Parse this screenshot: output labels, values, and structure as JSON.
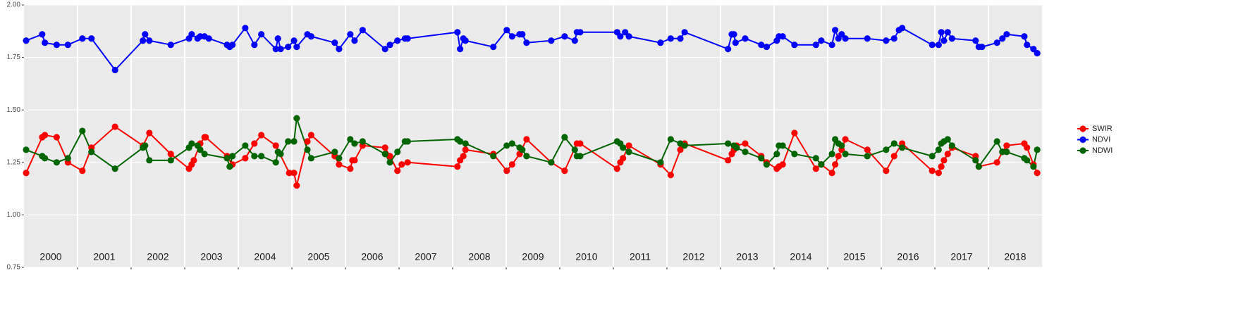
{
  "chart_data": {
    "type": "line",
    "xlim": [
      2000,
      2019
    ],
    "xticks": [
      2001,
      2002,
      2003,
      2004,
      2005,
      2006,
      2007,
      2008,
      2009,
      2010,
      2011,
      2012,
      2013,
      2014,
      2015,
      2016,
      2017,
      2018
    ],
    "panel_labels": [
      "2000",
      "2001",
      "2002",
      "2003",
      "2004",
      "2005",
      "2006",
      "2007",
      "2008",
      "2009",
      "2010",
      "2011",
      "2012",
      "2013",
      "2014",
      "2015",
      "2016",
      "2017",
      "2018"
    ],
    "ylim": [
      0.75,
      2.0
    ],
    "yticks": [
      0.75,
      {
        "value": 1.0,
        "label": "1.00"
      },
      1.25,
      {
        "value": 1.5,
        "label": "1.50"
      },
      1.75,
      {
        "value": 2.0,
        "label": "2.00"
      }
    ],
    "grid": true,
    "legend": "right",
    "series": [
      {
        "name": "SWIR",
        "color": "#ff0000",
        "x": [
          2000.04,
          2000.34,
          2000.39,
          2000.61,
          2000.82,
          2001.09,
          2001.26,
          2001.7,
          2002.22,
          2002.34,
          2002.74,
          2003.08,
          2003.13,
          2003.17,
          2003.29,
          2003.37,
          2003.39,
          2003.79,
          2003.89,
          2004.13,
          2004.3,
          2004.43,
          2004.7,
          2004.95,
          2005.04,
          2005.09,
          2005.29,
          2005.36,
          2005.8,
          2005.88,
          2006.09,
          2006.13,
          2006.17,
          2006.32,
          2006.74,
          2006.83,
          2006.97,
          2007.05,
          2007.16,
          2008.09,
          2008.14,
          2008.2,
          2008.24,
          2008.76,
          2009.01,
          2009.11,
          2009.25,
          2009.38,
          2009.84,
          2010.09,
          2010.32,
          2010.38,
          2011.07,
          2011.13,
          2011.18,
          2011.29,
          2011.88,
          2012.07,
          2012.25,
          2012.33,
          2013.14,
          2013.21,
          2013.25,
          2013.3,
          2013.46,
          2013.76,
          2013.86,
          2014.05,
          2014.09,
          2014.16,
          2014.38,
          2014.78,
          2014.88,
          2015.08,
          2015.14,
          2015.2,
          2015.26,
          2015.33,
          2015.74,
          2016.09,
          2016.24,
          2016.39,
          2016.95,
          2017.07,
          2017.12,
          2017.17,
          2017.24,
          2017.32,
          2017.76,
          2017.82,
          2018.16,
          2018.26,
          2018.34,
          2018.67,
          2018.72,
          2018.84,
          2018.91
        ],
        "values": [
          1.2,
          1.37,
          1.38,
          1.37,
          1.25,
          1.21,
          1.32,
          1.42,
          1.33,
          1.39,
          1.29,
          1.22,
          1.24,
          1.26,
          1.34,
          1.37,
          1.37,
          1.28,
          1.24,
          1.27,
          1.34,
          1.38,
          1.33,
          1.2,
          1.2,
          1.14,
          1.35,
          1.38,
          1.28,
          1.24,
          1.22,
          1.26,
          1.26,
          1.33,
          1.32,
          1.28,
          1.21,
          1.24,
          1.25,
          1.23,
          1.26,
          1.28,
          1.31,
          1.29,
          1.21,
          1.24,
          1.29,
          1.36,
          1.25,
          1.21,
          1.34,
          1.34,
          1.22,
          1.25,
          1.27,
          1.33,
          1.24,
          1.19,
          1.31,
          1.34,
          1.26,
          1.29,
          1.31,
          1.33,
          1.34,
          1.28,
          1.25,
          1.22,
          1.23,
          1.24,
          1.39,
          1.22,
          1.24,
          1.2,
          1.24,
          1.28,
          1.31,
          1.36,
          1.31,
          1.21,
          1.28,
          1.34,
          1.21,
          1.2,
          1.23,
          1.26,
          1.29,
          1.32,
          1.28,
          1.23,
          1.25,
          1.3,
          1.33,
          1.34,
          1.32,
          1.24,
          1.2
        ]
      },
      {
        "name": "NDVI",
        "color": "#0000ff",
        "x": [
          2000.04,
          2000.34,
          2000.39,
          2000.61,
          2000.82,
          2001.09,
          2001.26,
          2001.7,
          2002.22,
          2002.26,
          2002.34,
          2002.74,
          2003.08,
          2003.13,
          2003.24,
          2003.29,
          2003.37,
          2003.45,
          2003.79,
          2003.84,
          2003.89,
          2004.13,
          2004.3,
          2004.43,
          2004.7,
          2004.74,
          2004.79,
          2004.93,
          2005.04,
          2005.09,
          2005.29,
          2005.36,
          2005.8,
          2005.88,
          2006.09,
          2006.17,
          2006.32,
          2006.74,
          2006.83,
          2006.97,
          2007.11,
          2007.16,
          2008.09,
          2008.14,
          2008.2,
          2008.24,
          2008.76,
          2009.01,
          2009.11,
          2009.25,
          2009.3,
          2009.38,
          2009.84,
          2010.09,
          2010.28,
          2010.32,
          2010.38,
          2011.07,
          2011.13,
          2011.22,
          2011.29,
          2011.88,
          2012.07,
          2012.25,
          2012.33,
          2013.14,
          2013.21,
          2013.25,
          2013.28,
          2013.46,
          2013.76,
          2013.86,
          2014.05,
          2014.09,
          2014.16,
          2014.38,
          2014.78,
          2014.88,
          2015.08,
          2015.14,
          2015.2,
          2015.26,
          2015.33,
          2015.74,
          2016.09,
          2016.24,
          2016.33,
          2016.39,
          2016.95,
          2017.07,
          2017.12,
          2017.17,
          2017.24,
          2017.32,
          2017.76,
          2017.82,
          2017.88,
          2018.16,
          2018.26,
          2018.34,
          2018.67,
          2018.72,
          2018.84,
          2018.91
        ],
        "values": [
          1.83,
          1.86,
          1.82,
          1.81,
          1.81,
          1.84,
          1.84,
          1.69,
          1.83,
          1.86,
          1.83,
          1.81,
          1.84,
          1.86,
          1.84,
          1.85,
          1.85,
          1.84,
          1.81,
          1.8,
          1.81,
          1.89,
          1.81,
          1.86,
          1.79,
          1.84,
          1.79,
          1.8,
          1.83,
          1.8,
          1.86,
          1.85,
          1.82,
          1.79,
          1.86,
          1.83,
          1.88,
          1.79,
          1.81,
          1.83,
          1.84,
          1.84,
          1.87,
          1.79,
          1.84,
          1.83,
          1.8,
          1.88,
          1.85,
          1.86,
          1.86,
          1.82,
          1.83,
          1.85,
          1.83,
          1.87,
          1.87,
          1.87,
          1.85,
          1.87,
          1.85,
          1.82,
          1.84,
          1.84,
          1.87,
          1.79,
          1.86,
          1.86,
          1.82,
          1.84,
          1.81,
          1.8,
          1.83,
          1.85,
          1.85,
          1.81,
          1.81,
          1.83,
          1.81,
          1.88,
          1.84,
          1.86,
          1.84,
          1.84,
          1.83,
          1.84,
          1.88,
          1.89,
          1.81,
          1.81,
          1.87,
          1.83,
          1.87,
          1.84,
          1.83,
          1.8,
          1.8,
          1.82,
          1.84,
          1.86,
          1.85,
          1.81,
          1.79,
          1.77
        ]
      },
      {
        "name": "NDWI",
        "color": "#006400",
        "x": [
          2000.04,
          2000.34,
          2000.39,
          2000.61,
          2000.82,
          2001.09,
          2001.26,
          2001.7,
          2002.22,
          2002.26,
          2002.34,
          2002.74,
          2003.08,
          2003.13,
          2003.24,
          2003.29,
          2003.37,
          2003.79,
          2003.84,
          2003.89,
          2004.13,
          2004.3,
          2004.43,
          2004.7,
          2004.74,
          2004.79,
          2004.93,
          2005.04,
          2005.09,
          2005.29,
          2005.36,
          2005.8,
          2005.88,
          2006.09,
          2006.17,
          2006.32,
          2006.74,
          2006.83,
          2006.97,
          2007.11,
          2007.16,
          2008.09,
          2008.14,
          2008.24,
          2008.76,
          2009.01,
          2009.11,
          2009.25,
          2009.3,
          2009.38,
          2009.84,
          2010.09,
          2010.28,
          2010.32,
          2010.38,
          2011.07,
          2011.13,
          2011.18,
          2011.29,
          2011.88,
          2012.07,
          2012.25,
          2012.33,
          2013.14,
          2013.25,
          2013.3,
          2013.46,
          2013.76,
          2013.86,
          2014.05,
          2014.09,
          2014.16,
          2014.38,
          2014.78,
          2014.88,
          2015.08,
          2015.14,
          2015.2,
          2015.26,
          2015.33,
          2015.74,
          2016.09,
          2016.24,
          2016.39,
          2016.95,
          2017.07,
          2017.12,
          2017.17,
          2017.24,
          2017.32,
          2017.76,
          2017.82,
          2018.16,
          2018.26,
          2018.34,
          2018.67,
          2018.72,
          2018.84,
          2018.91
        ],
        "values": [
          1.31,
          1.28,
          1.27,
          1.25,
          1.27,
          1.4,
          1.3,
          1.22,
          1.32,
          1.33,
          1.26,
          1.26,
          1.32,
          1.34,
          1.33,
          1.31,
          1.29,
          1.27,
          1.23,
          1.28,
          1.33,
          1.28,
          1.28,
          1.25,
          1.3,
          1.29,
          1.35,
          1.35,
          1.46,
          1.31,
          1.27,
          1.3,
          1.27,
          1.36,
          1.34,
          1.35,
          1.29,
          1.25,
          1.3,
          1.35,
          1.35,
          1.36,
          1.35,
          1.34,
          1.28,
          1.33,
          1.34,
          1.32,
          1.31,
          1.28,
          1.25,
          1.37,
          1.31,
          1.28,
          1.28,
          1.35,
          1.34,
          1.32,
          1.3,
          1.25,
          1.36,
          1.34,
          1.33,
          1.34,
          1.33,
          1.32,
          1.3,
          1.27,
          1.24,
          1.29,
          1.33,
          1.33,
          1.29,
          1.27,
          1.24,
          1.29,
          1.36,
          1.34,
          1.33,
          1.29,
          1.28,
          1.31,
          1.34,
          1.32,
          1.28,
          1.31,
          1.34,
          1.35,
          1.36,
          1.33,
          1.26,
          1.23,
          1.35,
          1.3,
          1.3,
          1.27,
          1.26,
          1.23,
          1.31
        ]
      }
    ]
  }
}
